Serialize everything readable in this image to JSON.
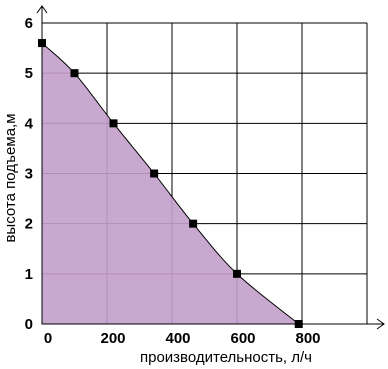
{
  "chart_data": {
    "type": "area",
    "xlabel": "производительность, л/ч",
    "ylabel": "высота подъема,м",
    "xlim": [
      0,
      1000
    ],
    "ylim": [
      0,
      6
    ],
    "x_ticks": [
      "0",
      "200",
      "400",
      "600",
      "800"
    ],
    "y_ticks": [
      "0",
      "1",
      "2",
      "3",
      "4",
      "5",
      "6"
    ],
    "grid": true,
    "fill_color": "#c39fcb",
    "series": [
      {
        "x": [
          0,
          100,
          220,
          345,
          465,
          600,
          790
        ],
        "y": [
          5.6,
          5.0,
          4.0,
          3.0,
          2.0,
          1.0,
          0
        ]
      }
    ]
  }
}
